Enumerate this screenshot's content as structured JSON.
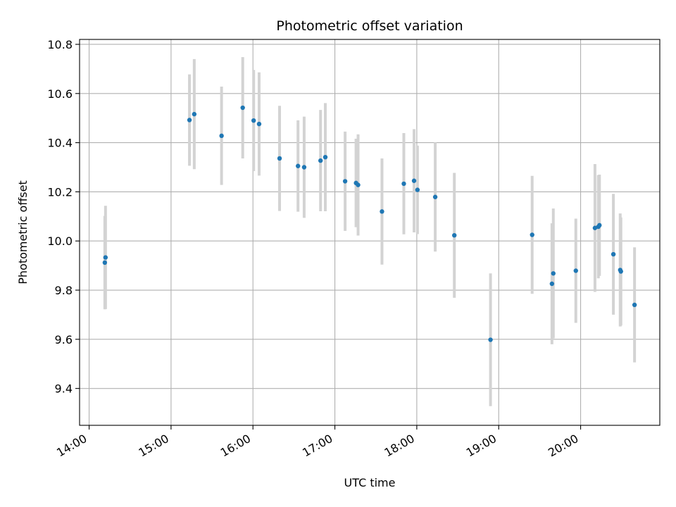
{
  "chart_data": {
    "type": "scatter",
    "title": "Photometric offset variation",
    "xlabel": "UTC time",
    "ylabel": "Photometric offset",
    "x_unit": "minutes since 14:00 UTC",
    "xlim": [
      -7,
      418
    ],
    "ylim": [
      9.25,
      10.82
    ],
    "x_ticks": [
      {
        "value": 0,
        "label": "14:00"
      },
      {
        "value": 60,
        "label": "15:00"
      },
      {
        "value": 120,
        "label": "16:00"
      },
      {
        "value": 180,
        "label": "17:00"
      },
      {
        "value": 240,
        "label": "18:00"
      },
      {
        "value": 300,
        "label": "19:00"
      },
      {
        "value": 360,
        "label": "20:00"
      }
    ],
    "y_ticks": [
      {
        "value": 9.4,
        "label": "9.4"
      },
      {
        "value": 9.6,
        "label": "9.6"
      },
      {
        "value": 9.8,
        "label": "9.8"
      },
      {
        "value": 10.0,
        "label": "10.0"
      },
      {
        "value": 10.2,
        "label": "10.2"
      },
      {
        "value": 10.4,
        "label": "10.4"
      },
      {
        "value": 10.6,
        "label": "10.6"
      },
      {
        "value": 10.8,
        "label": "10.8"
      }
    ],
    "grid": true,
    "marker_color": "#1f77b4",
    "errorbar_color": "#d3d3d3",
    "series": [
      {
        "name": "offset",
        "points": [
          {
            "x": 11.5,
            "y": 9.912,
            "err": 0.19
          },
          {
            "x": 12.0,
            "y": 9.933,
            "err": 0.21
          },
          {
            "x": 73.5,
            "y": 10.492,
            "err": 0.186
          },
          {
            "x": 77.0,
            "y": 10.516,
            "err": 0.224
          },
          {
            "x": 97.0,
            "y": 10.428,
            "err": 0.2
          },
          {
            "x": 112.5,
            "y": 10.542,
            "err": 0.206
          },
          {
            "x": 120.5,
            "y": 10.49,
            "err": 0.206
          },
          {
            "x": 124.5,
            "y": 10.476,
            "err": 0.21
          },
          {
            "x": 139.5,
            "y": 10.336,
            "err": 0.214
          },
          {
            "x": 153.0,
            "y": 10.305,
            "err": 0.186
          },
          {
            "x": 157.5,
            "y": 10.3,
            "err": 0.206
          },
          {
            "x": 169.5,
            "y": 10.327,
            "err": 0.206
          },
          {
            "x": 173.0,
            "y": 10.341,
            "err": 0.22
          },
          {
            "x": 187.5,
            "y": 10.243,
            "err": 0.202
          },
          {
            "x": 195.5,
            "y": 10.236,
            "err": 0.18
          },
          {
            "x": 197.0,
            "y": 10.228,
            "err": 0.206
          },
          {
            "x": 214.5,
            "y": 10.12,
            "err": 0.216
          },
          {
            "x": 230.5,
            "y": 10.233,
            "err": 0.206
          },
          {
            "x": 238.0,
            "y": 10.245,
            "err": 0.21
          },
          {
            "x": 240.5,
            "y": 10.208,
            "err": 0.18
          },
          {
            "x": 253.5,
            "y": 10.179,
            "err": 0.222
          },
          {
            "x": 267.5,
            "y": 10.023,
            "err": 0.254
          },
          {
            "x": 294.0,
            "y": 9.598,
            "err": 0.27
          },
          {
            "x": 324.5,
            "y": 10.025,
            "err": 0.24
          },
          {
            "x": 339.0,
            "y": 9.826,
            "err": 0.246
          },
          {
            "x": 340.0,
            "y": 9.868,
            "err": 0.264
          },
          {
            "x": 356.5,
            "y": 9.879,
            "err": 0.212
          },
          {
            "x": 370.5,
            "y": 10.053,
            "err": 0.26
          },
          {
            "x": 373.0,
            "y": 10.058,
            "err": 0.21
          },
          {
            "x": 373.8,
            "y": 10.064,
            "err": 0.206
          },
          {
            "x": 384.0,
            "y": 9.946,
            "err": 0.246
          },
          {
            "x": 389.0,
            "y": 9.882,
            "err": 0.23
          },
          {
            "x": 389.5,
            "y": 9.876,
            "err": 0.22
          },
          {
            "x": 399.5,
            "y": 9.74,
            "err": 0.234
          }
        ]
      }
    ]
  }
}
